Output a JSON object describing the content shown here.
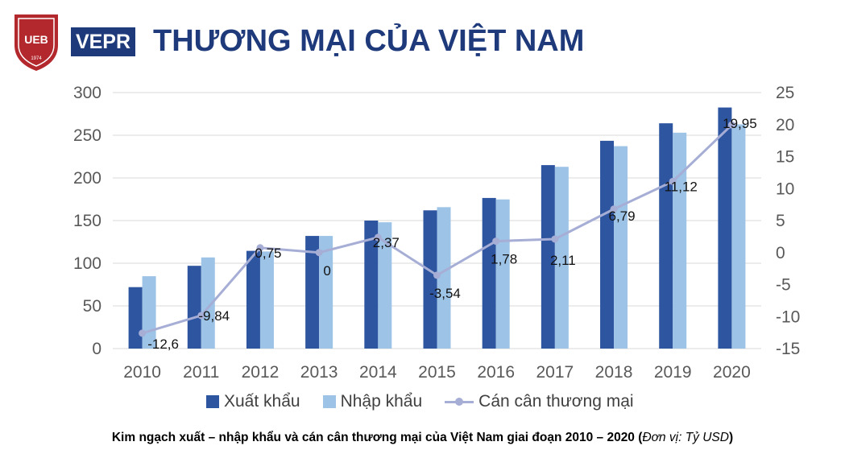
{
  "header": {
    "logo_ueb_text": "UEB",
    "logo_ueb_year": "1974",
    "logo_vepr_text": "VEPR",
    "title": "THƯƠNG MẠI CỦA VIỆT NAM"
  },
  "colors": {
    "title": "#1e3a7b",
    "export": "#2e55a0",
    "import": "#9dc3e6",
    "balance": "#a6aed6",
    "ueb_red": "#b3282d"
  },
  "chart_data": {
    "type": "bar",
    "categories": [
      "2010",
      "2011",
      "2012",
      "2013",
      "2014",
      "2015",
      "2016",
      "2017",
      "2018",
      "2019",
      "2020"
    ],
    "series": [
      {
        "name": "Xuất khẩu",
        "type": "bar",
        "axis": "left",
        "values": [
          72,
          97,
          114.5,
          132,
          150,
          162,
          176.5,
          215,
          243.5,
          264,
          282.5
        ]
      },
      {
        "name": "Nhập khẩu",
        "type": "bar",
        "axis": "left",
        "values": [
          84.8,
          106.8,
          113.8,
          132,
          148,
          165.7,
          174.8,
          213,
          237.2,
          253,
          262.7
        ]
      },
      {
        "name": "Cán cân thương mại",
        "type": "line",
        "axis": "right",
        "values": [
          -12.6,
          -9.84,
          0.75,
          0,
          2.37,
          -3.54,
          1.78,
          2.11,
          6.79,
          11.12,
          19.95
        ],
        "labels": [
          "-12,6",
          "-9,84",
          "0,75",
          "0",
          "2,37",
          "-3,54",
          "1,78",
          "2,11",
          "6,79",
          "11,12",
          "19,95"
        ]
      }
    ],
    "ylim": [
      0,
      300
    ],
    "yticks": [
      "0",
      "50",
      "100",
      "150",
      "200",
      "250",
      "300"
    ],
    "y2lim": [
      -15,
      25
    ],
    "y2ticks": [
      "-15",
      "-10",
      "-5",
      "0",
      "5",
      "10",
      "15",
      "20",
      "25"
    ],
    "grid": true,
    "legend": "bottom",
    "title": ""
  },
  "caption": {
    "text": "Kim ngạch xuất – nhập khẩu và cán cân thương mại của Việt Nam giai đoạn 2010 – 2020 (",
    "unit": "Đơn vị: Tỷ USD",
    "close": ")"
  }
}
